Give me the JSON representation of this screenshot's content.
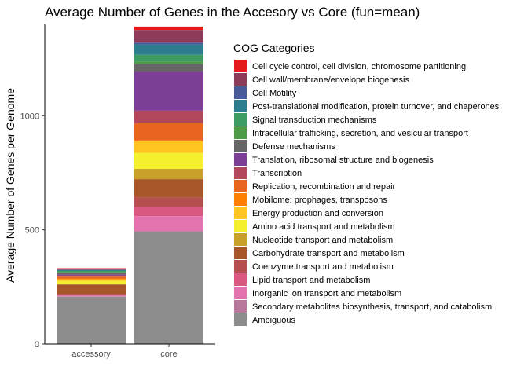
{
  "chart_data": {
    "type": "bar",
    "stacked": true,
    "title": "Average Number of Genes in the Accesory vs Core (fun=mean)",
    "xlabel": "",
    "ylabel": "Average Number of Genes per Genome",
    "categories": [
      "accessory",
      "core"
    ],
    "ylim": [
      0,
      1400
    ],
    "yticks": [
      0,
      500,
      1000
    ],
    "grid": false,
    "legend_title": "COG Categories",
    "legend_position": "right",
    "series": [
      {
        "name": "Cell cycle control, cell division, chromosome partitioning",
        "color": "#E41A1C",
        "values": [
          2,
          15
        ]
      },
      {
        "name": "Cell wall/membrane/envelope biogenesis",
        "color": "#8E3A5A",
        "values": [
          5,
          55
        ]
      },
      {
        "name": "Cell Motility",
        "color": "#495A9A",
        "values": [
          1,
          8
        ]
      },
      {
        "name": "Post-translational modification, protein turnover, and chaperones",
        "color": "#2E7D8F",
        "values": [
          4,
          45
        ]
      },
      {
        "name": "Signal transduction mechanisms",
        "color": "#3C9A62",
        "values": [
          4,
          30
        ]
      },
      {
        "name": "Intracellular trafficking, secretion, and vesicular transport",
        "color": "#4E9B47",
        "values": [
          3,
          10
        ]
      },
      {
        "name": "Defense mechanisms",
        "color": "#666666",
        "values": [
          8,
          35
        ]
      },
      {
        "name": "Translation, ribosomal structure and biogenesis",
        "color": "#7D3F96",
        "values": [
          4,
          170
        ]
      },
      {
        "name": "Transcription",
        "color": "#B0475B",
        "values": [
          6,
          55
        ]
      },
      {
        "name": "Replication, recombination and repair",
        "color": "#E8651F",
        "values": [
          8,
          75
        ]
      },
      {
        "name": "Mobilome: prophages, transposons",
        "color": "#FF7F00",
        "values": [
          4,
          5
        ]
      },
      {
        "name": "Energy production and conversion",
        "color": "#FFC41F",
        "values": [
          7,
          50
        ]
      },
      {
        "name": "Amino acid transport and metabolism",
        "color": "#F4F02E",
        "values": [
          12,
          70
        ]
      },
      {
        "name": "Nucleotide transport and metabolism",
        "color": "#C8A02A",
        "values": [
          4,
          45
        ]
      },
      {
        "name": "Carbohydrate transport and metabolism",
        "color": "#A65628",
        "values": [
          40,
          80
        ]
      },
      {
        "name": "Coenzyme transport and metabolism",
        "color": "#B54E4E",
        "values": [
          4,
          42
        ]
      },
      {
        "name": "Lipid transport and metabolism",
        "color": "#D9587F",
        "values": [
          4,
          40
        ]
      },
      {
        "name": "Inorganic ion transport and metabolism",
        "color": "#E373AE",
        "values": [
          3,
          65
        ]
      },
      {
        "name": "Secondary metabolites biosynthesis, transport, and catabolism",
        "color": "#B8789C",
        "values": [
          2,
          5
        ]
      },
      {
        "name": "Ambiguous",
        "color": "#8C8C8C",
        "values": [
          207,
          490
        ]
      }
    ]
  }
}
